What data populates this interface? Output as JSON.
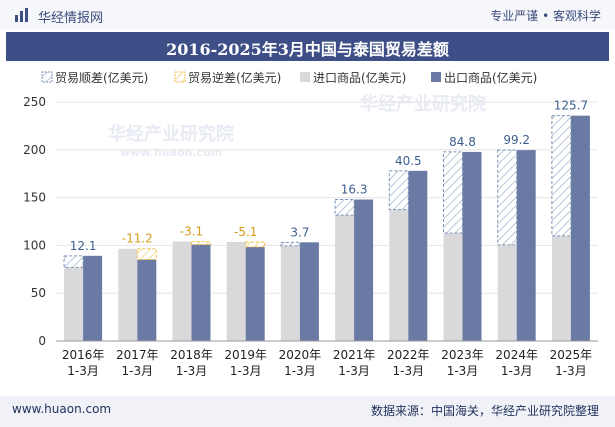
{
  "header": {
    "brand": "华经情报网",
    "slogan": "专业严谨 • 客观科学"
  },
  "footer": {
    "website": "www.huaon.com",
    "source": "数据来源：中国海关，华经产业研究院整理"
  },
  "watermark": {
    "text": "华经产业研究院",
    "url": "www.huaon.com"
  },
  "colors": {
    "import": "#d9d9db",
    "export": "#6a7aa5",
    "surplus_stroke": "#7d94b8",
    "deficit_stroke": "#f2c14e",
    "surplus_label": "#3d5f8f",
    "deficit_label": "#d59a1a"
  },
  "chart_data": {
    "type": "bar",
    "title": "2016-2025年3月中国与泰国贸易差额",
    "categories": [
      "2016年\n1-3月",
      "2017年\n1-3月",
      "2018年\n1-3月",
      "2019年\n1-3月",
      "2020年\n1-3月",
      "2021年\n1-3月",
      "2022年\n1-3月",
      "2023年\n1-3月",
      "2024年\n1-3月",
      "2025年\n1-3月"
    ],
    "ylim": [
      0,
      250
    ],
    "yticks": [
      0,
      50,
      100,
      150,
      200,
      250
    ],
    "legend": [
      "贸易顺差(亿美元)",
      "贸易逆差(亿美元)",
      "进口商品(亿美元)",
      "出口商品(亿美元)"
    ],
    "series": [
      {
        "name": "进口商品(亿美元)",
        "values": [
          77.0,
          96.5,
          104.0,
          103.6,
          99.5,
          131.7,
          137.5,
          113.0,
          100.5,
          110.0
        ]
      },
      {
        "name": "出口商品(亿美元)",
        "values": [
          89.1,
          85.3,
          100.9,
          98.5,
          103.2,
          148.0,
          178.0,
          197.8,
          199.7,
          235.7
        ]
      }
    ],
    "balance": [
      12.1,
      -11.2,
      -3.1,
      -5.1,
      3.7,
      16.3,
      40.5,
      84.8,
      99.2,
      125.7
    ],
    "balance_labels": [
      "12.1",
      "-11.2",
      "-3.1",
      "-5.1",
      "3.7",
      "16.3",
      "40.5",
      "84.8",
      "99.2",
      "125.7"
    ]
  }
}
